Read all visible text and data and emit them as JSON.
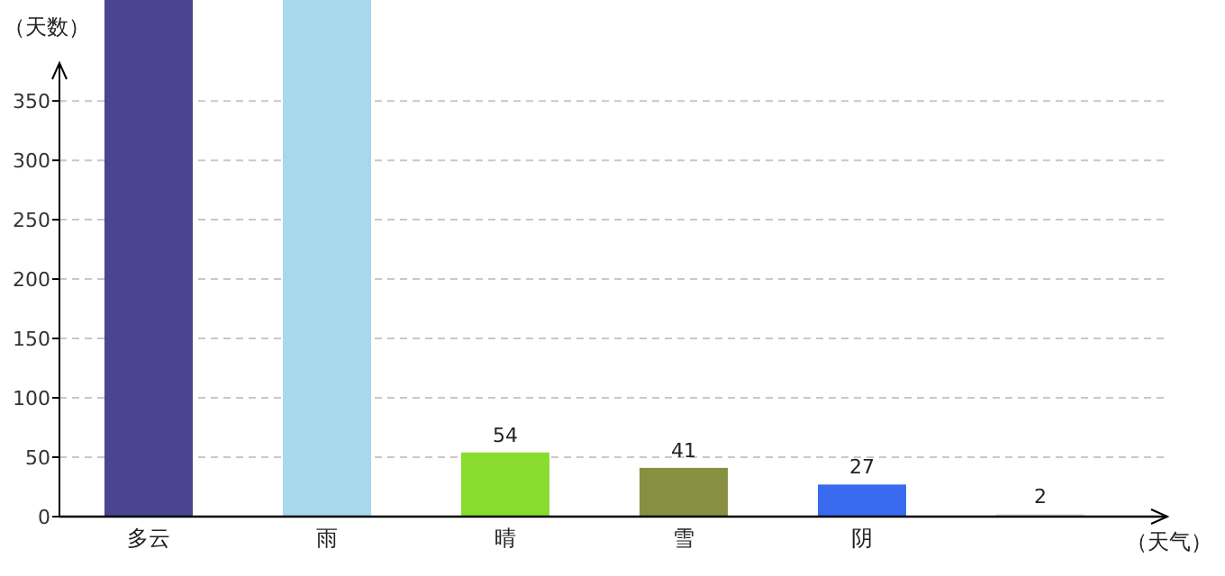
{
  "chart_data": {
    "type": "bar",
    "xlabel": "（天气）",
    "ylabel": "（天数）",
    "categories": [
      "多云",
      "雨",
      "晴",
      "雪",
      "阴",
      null
    ],
    "values": [
      435,
      435,
      54,
      41,
      27,
      2
    ],
    "colors": [
      "#4a4590",
      "#a8d8ec",
      "#88dd2e",
      "#878f40",
      "#3a6aee",
      "#dddddd"
    ],
    "value_labels": [
      null,
      null,
      "54",
      "41",
      "27",
      "2"
    ],
    "ylim": [
      0,
      435
    ],
    "yticks": [
      0,
      50,
      100,
      150,
      200,
      250,
      300,
      350
    ],
    "grid": "y"
  }
}
